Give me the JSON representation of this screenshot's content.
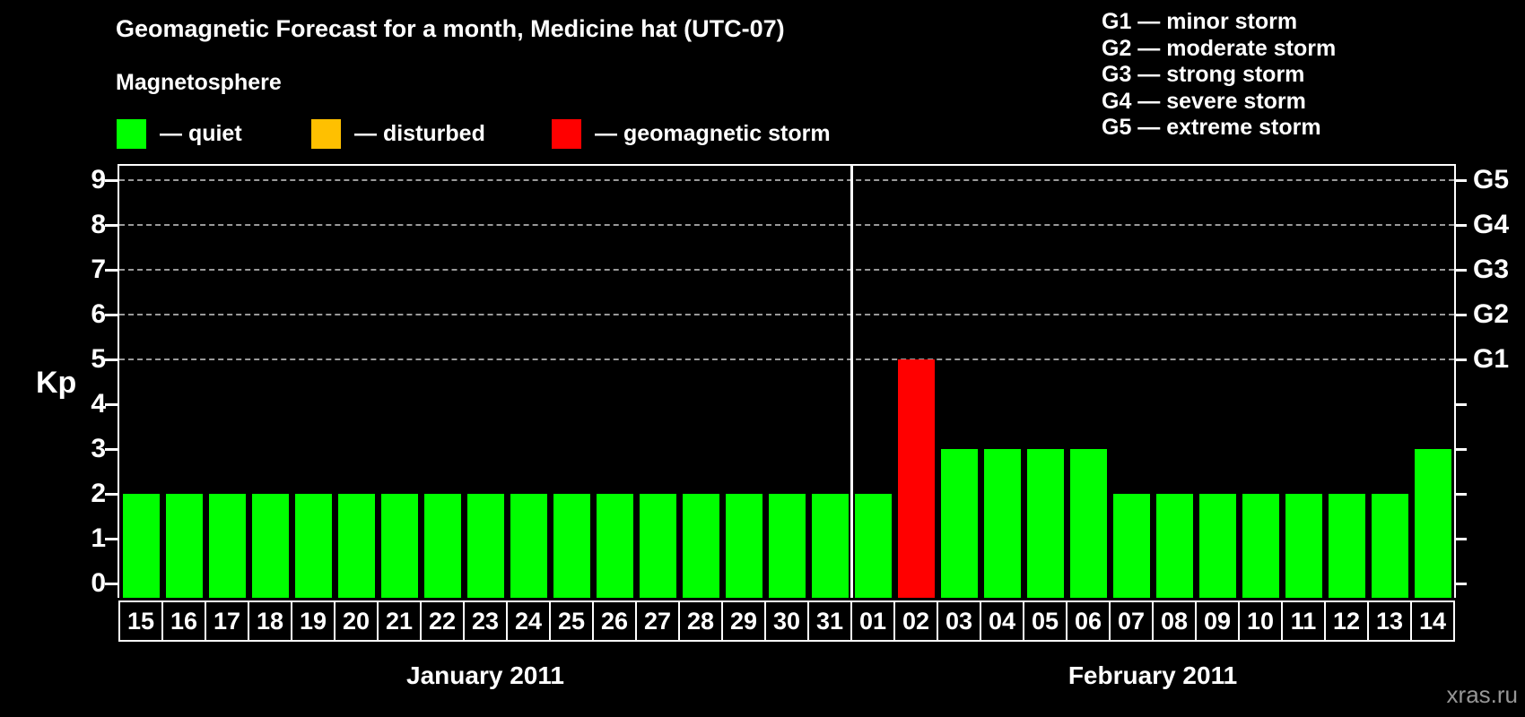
{
  "header": {
    "title": "Geomagnetic Forecast for a month, Medicine hat (UTC-07)",
    "subtitle": "Magnetosphere"
  },
  "legend": {
    "items": [
      {
        "key": "quiet",
        "label": "— quiet",
        "color": "#00ff00"
      },
      {
        "key": "disturbed",
        "label": "— disturbed",
        "color": "#ffc000"
      },
      {
        "key": "storm",
        "label": "— geomagnetic storm",
        "color": "#ff0000"
      }
    ]
  },
  "storm_scale": {
    "items": [
      "G1 — minor storm",
      "G2 — moderate storm",
      "G3 — strong storm",
      "G4 — severe storm",
      "G5 — extreme storm"
    ]
  },
  "watermark": "xras.ru",
  "chart_data": {
    "type": "bar",
    "title": "Geomagnetic Forecast for a month, Medicine hat (UTC-07)",
    "ylabel": "Kp",
    "ylim": [
      0,
      9
    ],
    "yticks": [
      0,
      1,
      2,
      3,
      4,
      5,
      6,
      7,
      8,
      9
    ],
    "gridlines_at_kp": [
      5,
      6,
      7,
      8,
      9
    ],
    "grid_style": "dashed",
    "right_axis": [
      {
        "kp": 5,
        "label": "G1"
      },
      {
        "kp": 6,
        "label": "G2"
      },
      {
        "kp": 7,
        "label": "G3"
      },
      {
        "kp": 8,
        "label": "G4"
      },
      {
        "kp": 9,
        "label": "G5"
      }
    ],
    "colors": {
      "quiet": "#00ff00",
      "disturbed": "#ffc000",
      "storm": "#ff0000"
    },
    "months": [
      {
        "label": "January 2011",
        "bars": [
          {
            "day": "15",
            "kp": 2,
            "status": "quiet"
          },
          {
            "day": "16",
            "kp": 2,
            "status": "quiet"
          },
          {
            "day": "17",
            "kp": 2,
            "status": "quiet"
          },
          {
            "day": "18",
            "kp": 2,
            "status": "quiet"
          },
          {
            "day": "19",
            "kp": 2,
            "status": "quiet"
          },
          {
            "day": "20",
            "kp": 2,
            "status": "quiet"
          },
          {
            "day": "21",
            "kp": 2,
            "status": "quiet"
          },
          {
            "day": "22",
            "kp": 2,
            "status": "quiet"
          },
          {
            "day": "23",
            "kp": 2,
            "status": "quiet"
          },
          {
            "day": "24",
            "kp": 2,
            "status": "quiet"
          },
          {
            "day": "25",
            "kp": 2,
            "status": "quiet"
          },
          {
            "day": "26",
            "kp": 2,
            "status": "quiet"
          },
          {
            "day": "27",
            "kp": 2,
            "status": "quiet"
          },
          {
            "day": "28",
            "kp": 2,
            "status": "quiet"
          },
          {
            "day": "29",
            "kp": 2,
            "status": "quiet"
          },
          {
            "day": "30",
            "kp": 2,
            "status": "quiet"
          },
          {
            "day": "31",
            "kp": 2,
            "status": "quiet"
          }
        ]
      },
      {
        "label": "February 2011",
        "bars": [
          {
            "day": "01",
            "kp": 2,
            "status": "quiet"
          },
          {
            "day": "02",
            "kp": 5,
            "status": "storm"
          },
          {
            "day": "03",
            "kp": 3,
            "status": "quiet"
          },
          {
            "day": "04",
            "kp": 3,
            "status": "quiet"
          },
          {
            "day": "05",
            "kp": 3,
            "status": "quiet"
          },
          {
            "day": "06",
            "kp": 3,
            "status": "quiet"
          },
          {
            "day": "07",
            "kp": 2,
            "status": "quiet"
          },
          {
            "day": "08",
            "kp": 2,
            "status": "quiet"
          },
          {
            "day": "09",
            "kp": 2,
            "status": "quiet"
          },
          {
            "day": "10",
            "kp": 2,
            "status": "quiet"
          },
          {
            "day": "11",
            "kp": 2,
            "status": "quiet"
          },
          {
            "day": "12",
            "kp": 2,
            "status": "quiet"
          },
          {
            "day": "13",
            "kp": 2,
            "status": "quiet"
          },
          {
            "day": "14",
            "kp": 3,
            "status": "quiet"
          }
        ]
      }
    ]
  }
}
